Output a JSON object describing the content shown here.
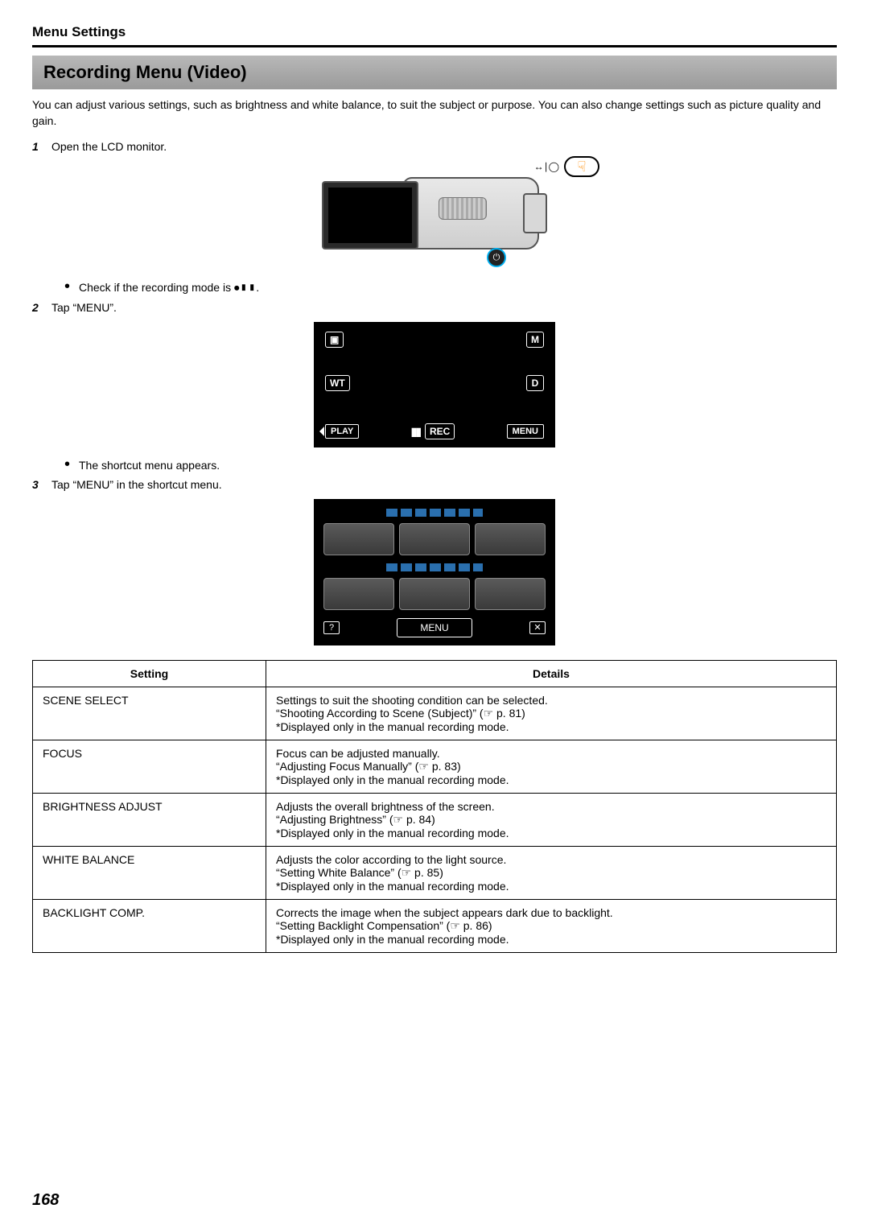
{
  "breadcrumb": "Menu Settings",
  "banner_title": "Recording Menu (Video)",
  "intro_text": "You can adjust various settings, such as brightness and white balance, to suit the subject or purpose. You can also change settings such as picture quality and gain.",
  "steps": {
    "s1": {
      "num": "1",
      "text": "Open the LCD monitor."
    },
    "s1_bullet": "Check if the recording mode is",
    "s1_bullet_suffix": ".",
    "s2": {
      "num": "2",
      "text": "Tap “MENU”."
    },
    "s2_bullet": "The shortcut menu appears.",
    "s3": {
      "num": "3",
      "text": "Tap “MENU” in the shortcut menu."
    }
  },
  "touch_badge": {
    "icons": "↔∣◯"
  },
  "screen_mock": {
    "top_left_icon": "▣",
    "top_right": "M",
    "mid_left": "WT",
    "mid_right": "D",
    "play": "PLAY",
    "rec": "REC",
    "menu": "MENU"
  },
  "shortcut_mock": {
    "help": "?",
    "menu": "MENU",
    "close": "✕"
  },
  "table": {
    "headers": {
      "setting": "Setting",
      "details": "Details"
    },
    "rows": [
      {
        "setting": "SCENE SELECT",
        "lines": [
          "Settings to suit the shooting condition can be selected.",
          "“Shooting According to Scene (Subject)” (☞ p. 81)",
          "*Displayed only in the manual recording mode."
        ]
      },
      {
        "setting": "FOCUS",
        "lines": [
          "Focus can be adjusted manually.",
          "“Adjusting Focus Manually” (☞ p. 83)",
          "*Displayed only in the manual recording mode."
        ]
      },
      {
        "setting": "BRIGHTNESS ADJUST",
        "lines": [
          "Adjusts the overall brightness of the screen.",
          "“Adjusting Brightness” (☞ p. 84)",
          "*Displayed only in the manual recording mode."
        ]
      },
      {
        "setting": "WHITE BALANCE",
        "lines": [
          "Adjusts the color according to the light source.",
          "“Setting White Balance” (☞ p. 85)",
          "*Displayed only in the manual recording mode."
        ]
      },
      {
        "setting": "BACKLIGHT COMP.",
        "lines": [
          "Corrects the image when the subject appears dark due to backlight.",
          "“Setting Backlight Compensation” (☞ p. 86)",
          "*Displayed only in the manual recording mode."
        ]
      }
    ]
  },
  "page_number": "168",
  "colors": {
    "banner_top": "#b8b8b8",
    "banner_bottom": "#9a9a9a",
    "touch_hand": "#ff8a00",
    "power_ring": "#00aeef",
    "shortcut_bar": "#2a6fae"
  }
}
